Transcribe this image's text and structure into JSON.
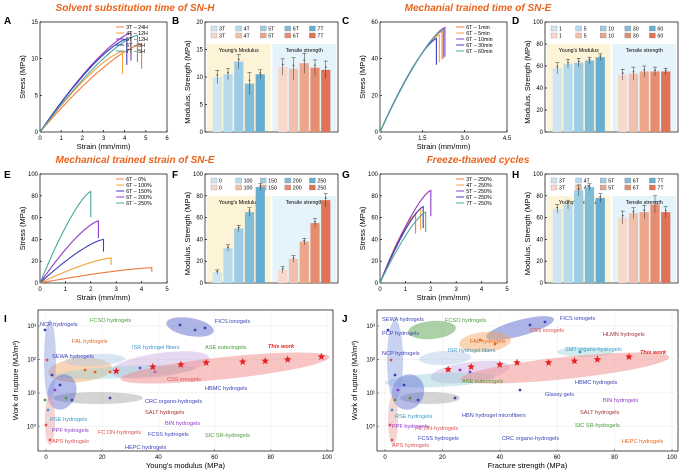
{
  "titles": {
    "t1": "Solvent substitution time of SN-H",
    "t2": "Mechanial trained time of SN-E",
    "t3": "Mechanical trained strain of SN-E",
    "t4": "Freeze-thawed cycles"
  },
  "panel_labels": [
    "A",
    "B",
    "C",
    "D",
    "E",
    "F",
    "G",
    "H",
    "I",
    "J"
  ],
  "chart_data": [
    {
      "panel": "A",
      "type": "line",
      "xlabel": "Strain (mm/mm)",
      "ylabel": "Stress (MPa)",
      "xlim": [
        0,
        6
      ],
      "ylim": [
        0,
        15
      ],
      "xticks": [
        "0",
        "1",
        "2",
        "3",
        "4",
        "5",
        "6"
      ],
      "yticks": [
        "0",
        "5",
        "10",
        "15"
      ],
      "series": [
        {
          "name": "3T – 24H",
          "color": "#f07b3f",
          "xmax": 4.8,
          "ymax": 12.0
        },
        {
          "name": "4T – 12H",
          "color": "#f4a23b",
          "xmax": 3.9,
          "ymax": 11.0
        },
        {
          "name": "5T – 12H",
          "color": "#8e3ac8",
          "xmax": 4.3,
          "ymax": 13.5
        },
        {
          "name": "6T – 5H",
          "color": "#3b3fb8",
          "xmax": 4.1,
          "ymax": 12.7
        },
        {
          "name": "7T – 5H",
          "color": "#4aa8a0",
          "xmax": 4.6,
          "ymax": 13.2
        }
      ]
    },
    {
      "panel": "B",
      "type": "bar",
      "ylabel": "Modulus, Strength (MPa)",
      "ylim": [
        0,
        20
      ],
      "yticks": [
        "0",
        "5",
        "10",
        "15",
        "20"
      ],
      "legend": [
        "3T",
        "4T",
        "5T",
        "6T",
        "7T",
        "3T",
        "4T",
        "5T",
        "6T",
        "7T"
      ],
      "groups": [
        {
          "label": "Young's Modulus",
          "values": [
            10.0,
            10.5,
            12.8,
            8.8,
            10.5
          ],
          "errors": [
            1.2,
            1.0,
            1.3,
            2.0,
            0.8
          ]
        },
        {
          "label": "Tensile strength",
          "values": [
            11.8,
            11.5,
            12.5,
            11.7,
            11.3
          ],
          "errors": [
            1.5,
            2.0,
            1.8,
            1.4,
            1.6
          ]
        }
      ]
    },
    {
      "panel": "C",
      "type": "line",
      "xlabel": "Strain (mm/mm)",
      "ylabel": "Stress (MPa)",
      "xlim": [
        0,
        4.5
      ],
      "ylim": [
        0,
        60
      ],
      "xticks": [
        "0",
        "1.5",
        "3.0",
        "4.5"
      ],
      "yticks": [
        "0",
        "20",
        "40",
        "60"
      ],
      "series": [
        {
          "name": "6T – 1min",
          "color": "#f07b3f",
          "xmax": 2.2,
          "ymax": 55
        },
        {
          "name": "6T – 5min",
          "color": "#f4a23b",
          "xmax": 2.1,
          "ymax": 53
        },
        {
          "name": "6T – 10min",
          "color": "#8e3ac8",
          "xmax": 2.3,
          "ymax": 57
        },
        {
          "name": "6T – 30min",
          "color": "#3b3fb8",
          "xmax": 2.0,
          "ymax": 51
        },
        {
          "name": "6T – 60min",
          "color": "#4aa8a0",
          "xmax": 2.25,
          "ymax": 56
        }
      ]
    },
    {
      "panel": "D",
      "type": "bar",
      "ylabel": "Modulus, Strength (MPa)",
      "ylim": [
        0,
        100
      ],
      "yticks": [
        "0",
        "20",
        "40",
        "60",
        "80",
        "100"
      ],
      "legend": [
        "1",
        "5",
        "10",
        "30",
        "60",
        "1",
        "5",
        "10",
        "30",
        "60"
      ],
      "groups": [
        {
          "label": "Young's Modulus",
          "values": [
            58,
            62,
            63,
            65,
            68
          ],
          "errors": [
            5,
            4,
            4,
            3,
            3
          ]
        },
        {
          "label": "Tensile strength",
          "values": [
            52,
            53,
            55,
            55,
            55
          ],
          "errors": [
            5,
            6,
            5,
            4,
            3
          ]
        }
      ]
    },
    {
      "panel": "E",
      "type": "line",
      "xlabel": "Strain (mm/mm)",
      "ylabel": "Stress (MPa)",
      "xlim": [
        0,
        5
      ],
      "ylim": [
        0,
        100
      ],
      "xticks": [
        "0",
        "1",
        "2",
        "3",
        "4",
        "5"
      ],
      "yticks": [
        "0",
        "20",
        "40",
        "60",
        "80",
        "100"
      ],
      "series": [
        {
          "name": "6T – 0%",
          "color": "#f07b3f",
          "xmax": 4.4,
          "ymax": 14
        },
        {
          "name": "6T – 100%",
          "color": "#f4a23b",
          "xmax": 2.8,
          "ymax": 23
        },
        {
          "name": "6T – 150%",
          "color": "#3b3fb8",
          "xmax": 2.5,
          "ymax": 40
        },
        {
          "name": "6T – 200%",
          "color": "#8e3ac8",
          "xmax": 2.3,
          "ymax": 57
        },
        {
          "name": "6T – 250%",
          "color": "#4aa8a0",
          "xmax": 2.0,
          "ymax": 84
        }
      ]
    },
    {
      "panel": "F",
      "type": "bar",
      "ylabel": "Modulus, Strength (MPa)",
      "ylim": [
        0,
        100
      ],
      "yticks": [
        "0",
        "20",
        "40",
        "60",
        "80",
        "100"
      ],
      "legend": [
        "0",
        "100",
        "150",
        "200",
        "250",
        "0",
        "100",
        "150",
        "200",
        "250"
      ],
      "groups": [
        {
          "label": "Young's Modulus",
          "values": [
            10,
            32,
            50,
            65,
            88
          ],
          "errors": [
            2,
            3,
            3,
            4,
            3
          ]
        },
        {
          "label": "Tensile strength",
          "values": [
            12,
            22,
            38,
            55,
            76
          ],
          "errors": [
            3,
            3,
            3,
            4,
            6
          ]
        }
      ]
    },
    {
      "panel": "G",
      "type": "line",
      "xlabel": "Strain (mm/mm)",
      "ylabel": "Stress (MPa)",
      "xlim": [
        0,
        5
      ],
      "ylim": [
        0,
        100
      ],
      "xticks": [
        "0",
        "1",
        "2",
        "3",
        "4",
        "5"
      ],
      "yticks": [
        "0",
        "20",
        "40",
        "60",
        "80",
        "100"
      ],
      "series": [
        {
          "name": "3T – 250%",
          "color": "#f07b3f",
          "xmax": 1.4,
          "ymax": 63
        },
        {
          "name": "4T – 250%",
          "color": "#f4a23b",
          "xmax": 1.6,
          "ymax": 68
        },
        {
          "name": "5T – 250%",
          "color": "#8e3ac8",
          "xmax": 2.0,
          "ymax": 85
        },
        {
          "name": "6T – 250%",
          "color": "#3b3fb8",
          "xmax": 1.7,
          "ymax": 70
        },
        {
          "name": "7T – 250%",
          "color": "#4aa8a0",
          "xmax": 1.8,
          "ymax": 65
        }
      ]
    },
    {
      "panel": "H",
      "type": "bar",
      "ylabel": "Modulus, Strength (MPa)",
      "ylim": [
        0,
        100
      ],
      "yticks": [
        "0",
        "20",
        "40",
        "60",
        "80",
        "100"
      ],
      "legend": [
        "3T",
        "4T",
        "5T",
        "6T",
        "7T",
        "3T",
        "4T",
        "5T",
        "6T",
        "7T"
      ],
      "groups": [
        {
          "label": "Young's Modulus",
          "values": [
            68,
            72,
            85,
            88,
            78
          ],
          "errors": [
            4,
            4,
            5,
            3,
            4
          ]
        },
        {
          "label": "Tensile strength",
          "values": [
            60,
            64,
            65,
            72,
            65
          ],
          "errors": [
            6,
            5,
            6,
            8,
            5
          ]
        }
      ]
    },
    {
      "panel": "I",
      "type": "scatter",
      "xlabel": "Young's modulus (MPa)",
      "ylabel": "Work of rupture (MJ/m³)",
      "xticks": [
        "0",
        "20",
        "40",
        "60",
        "80",
        "100"
      ],
      "yticks": [
        "10⁰",
        "10¹",
        "10²",
        "10³"
      ],
      "this_work": [
        [
          25,
          45
        ],
        [
          38,
          60
        ],
        [
          48,
          70
        ],
        [
          57,
          80
        ],
        [
          70,
          85
        ],
        [
          78,
          90
        ],
        [
          86,
          100
        ],
        [
          98,
          120
        ]
      ],
      "annotations": [
        {
          "text": "NCP hydrogels",
          "color": "#3b3fb8"
        },
        {
          "text": "FCSO hydrogels",
          "color": "#4a9a3a"
        },
        {
          "text": "FAL hydrogels",
          "color": "#e8641e"
        },
        {
          "text": "FICS ionogels",
          "color": "#3b3fb8"
        },
        {
          "text": "ISR hydrogel fibers",
          "color": "#3b9ac8"
        },
        {
          "text": "ASE eutectogels",
          "color": "#4a9a3a"
        },
        {
          "text": "SEWA hydrogels",
          "color": "#3b3fb8"
        },
        {
          "text": "CSS ionogels",
          "color": "#e05050"
        },
        {
          "text": "HBMC hydrogels",
          "color": "#3b3fb8"
        },
        {
          "text": "CRC organo-hydrogels",
          "color": "#3b3fb8"
        },
        {
          "text": "SALT hydrogels",
          "color": "#a03030"
        },
        {
          "text": "BIN hydrogels",
          "color": "#8e3ac8"
        },
        {
          "text": "RSE hydrogels",
          "color": "#3b9ac8"
        },
        {
          "text": "PPF hydrogels",
          "color": "#8e3ac8"
        },
        {
          "text": "FC DN-hydrogels",
          "color": "#e05050"
        },
        {
          "text": "FCSS hydrogels",
          "color": "#3b3fb8"
        },
        {
          "text": "SIC SR-hydrogels",
          "color": "#4a9a3a"
        },
        {
          "text": "APS hydrogels",
          "color": "#e05050"
        },
        {
          "text": "HEPC hydrogels",
          "color": "#3b3fb8"
        },
        {
          "text": "This work",
          "color": "#e02020"
        }
      ]
    },
    {
      "panel": "J",
      "type": "scatter",
      "xlabel": "Fracture strength (MPa)",
      "ylabel": "Work of rupture (MJ/m³)",
      "xticks": [
        "0",
        "20",
        "40",
        "60",
        "80",
        "100"
      ],
      "yticks": [
        "10⁰",
        "10¹",
        "10²",
        "10³"
      ],
      "this_work": [
        [
          22,
          50
        ],
        [
          30,
          60
        ],
        [
          40,
          70
        ],
        [
          46,
          80
        ],
        [
          57,
          80
        ],
        [
          66,
          90
        ],
        [
          74,
          100
        ],
        [
          85,
          120
        ]
      ],
      "annotations": [
        {
          "text": "SEWA hydrogels",
          "color": "#3b3fb8"
        },
        {
          "text": "FCSO hydrogels",
          "color": "#4a9a3a"
        },
        {
          "text": "FICS ionogels",
          "color": "#3b3fb8"
        },
        {
          "text": "PCP hydrogels",
          "color": "#3b3fb8"
        },
        {
          "text": "FAL hydrogels",
          "color": "#e8641e"
        },
        {
          "text": "CSS ionogels",
          "color": "#e05050"
        },
        {
          "text": "HLMN hydrogels",
          "color": "#a03030"
        },
        {
          "text": "NCP hydrogels",
          "color": "#3b3fb8"
        },
        {
          "text": "ISR hydrogel fibers",
          "color": "#3b9ac8"
        },
        {
          "text": "SMT organo-hydrogels",
          "color": "#3b9ac8"
        },
        {
          "text": "This work",
          "color": "#e02020"
        },
        {
          "text": "ASE eutectogels",
          "color": "#4a9a3a"
        },
        {
          "text": "HBMC hydrogels",
          "color": "#3b3fb8"
        },
        {
          "text": "Glassy gels",
          "color": "#3b3fb8"
        },
        {
          "text": "BIN hydrogels",
          "color": "#8e3ac8"
        },
        {
          "text": "RSE hydrogels",
          "color": "#3b9ac8"
        },
        {
          "text": "SALT hydrogels",
          "color": "#a03030"
        },
        {
          "text": "HBN hydrogel microfibers",
          "color": "#3b3fb8"
        },
        {
          "text": "PPF hydrogels",
          "color": "#8e3ac8"
        },
        {
          "text": "FC DN-hydrogels",
          "color": "#e05050"
        },
        {
          "text": "SIC SR-hydrogels",
          "color": "#4a9a3a"
        },
        {
          "text": "FCSS hydrogels",
          "color": "#3b3fb8"
        },
        {
          "text": "CRC organo-hydrogels",
          "color": "#3b3fb8"
        },
        {
          "text": "HEPC hydrogels",
          "color": "#e8641e"
        },
        {
          "text": "APS hydrogels",
          "color": "#e05050"
        }
      ]
    }
  ]
}
